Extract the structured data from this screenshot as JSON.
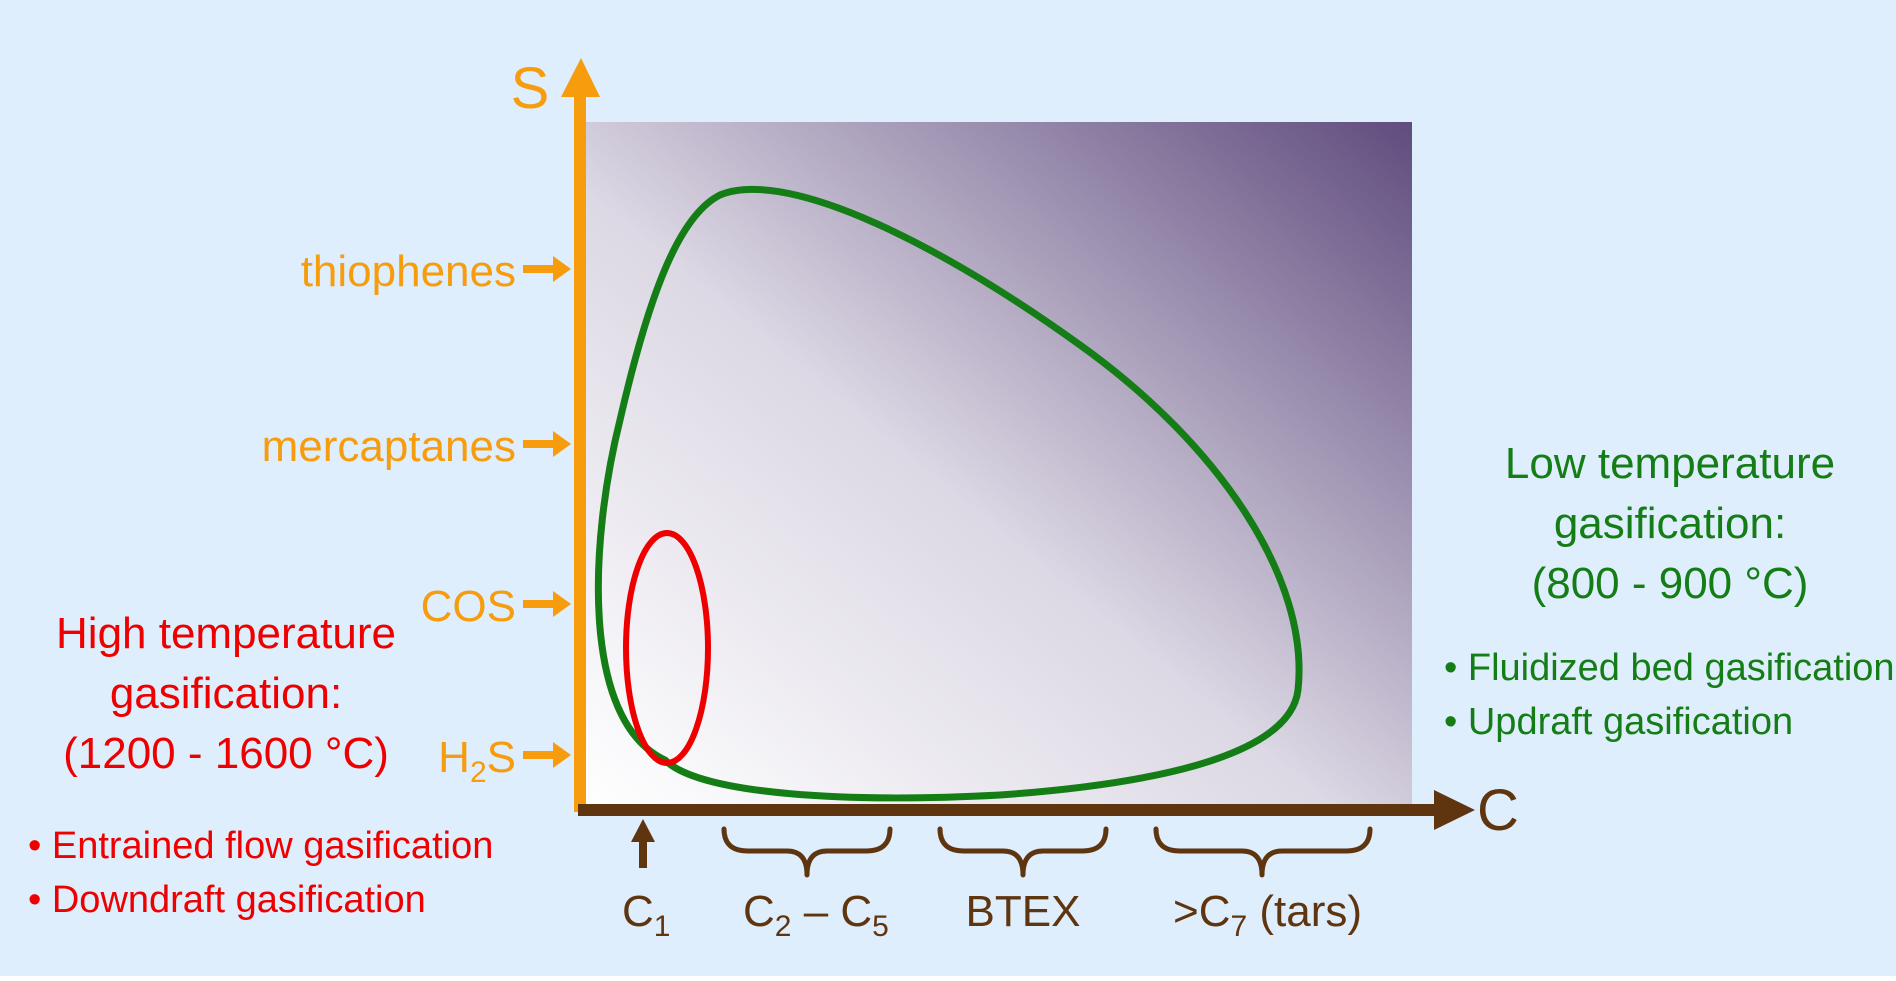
{
  "colors": {
    "background": "#deeefc",
    "axis": "#f79c0d",
    "c_axis": "#5f3510",
    "high_temp": "#ee0000",
    "low_temp": "#157d16",
    "gradient_dark": "#604c7e",
    "gradient_light": "#ffffff"
  },
  "axes": {
    "s_label": "S",
    "c_label": "C"
  },
  "s_ticks": {
    "thiophenes": "thiophenes",
    "mercaptanes": "mercaptanes",
    "cos": "COS",
    "h2s_pre": "H",
    "h2s_sub": "2",
    "h2s_post": "S"
  },
  "c_groups": {
    "c1_main": "C",
    "c1_sub": "1",
    "c2c5_a": "C",
    "c2c5_a_sub": "2",
    "c2c5_dash": " – ",
    "c2c5_b": "C",
    "c2c5_b_sub": "5",
    "btex": "BTEX",
    "tars_pre": ">C",
    "tars_sub": "7",
    "tars_post": " (tars)"
  },
  "high_temp": {
    "line1": "High temperature",
    "line2": "gasification:",
    "line3": "(1200 - 1600 °C)",
    "bullets": [
      "• Entrained flow gasification",
      "• Downdraft gasification"
    ]
  },
  "low_temp": {
    "line1": "Low temperature",
    "line2": "gasification:",
    "line3": "(800 - 900 °C)",
    "bullets": [
      "• Fluidized bed gasification",
      "• Updraft gasification"
    ]
  }
}
